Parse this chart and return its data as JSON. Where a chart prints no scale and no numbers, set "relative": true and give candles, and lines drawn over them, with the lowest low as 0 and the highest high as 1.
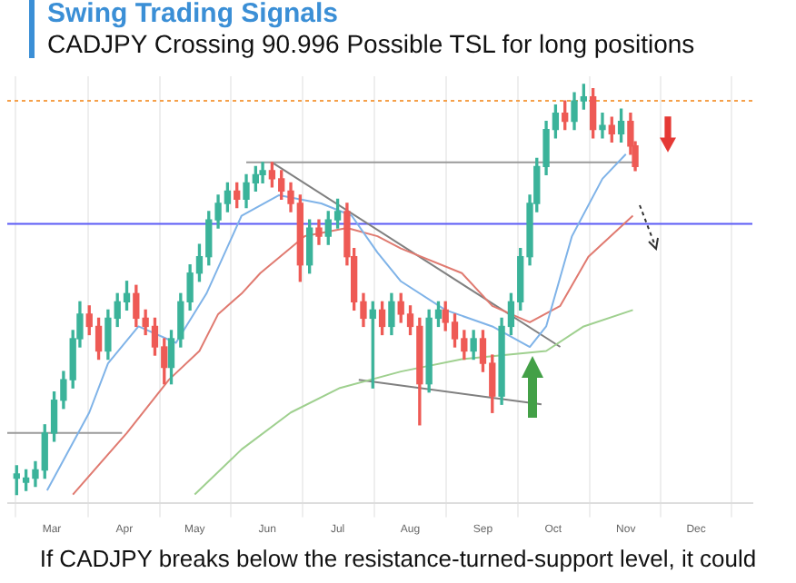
{
  "chart_data": {
    "type": "candlestick",
    "title": "Swing Trading Signals",
    "subtitle": "CADJPY Crossing 90.996 Possible TSL for long positions",
    "relative": true,
    "grid": "x",
    "marker": "none",
    "line_style": "solid",
    "xlim": [
      "--02-10",
      "--12-25"
    ],
    "xticks": [
      {
        "value": "--03-01",
        "label": "Mar"
      },
      {
        "value": "--04-01",
        "label": "Apr"
      },
      {
        "value": "--05-01",
        "label": "May"
      },
      {
        "value": "--06-01",
        "label": "Jun"
      },
      {
        "value": "--07-01",
        "label": "Jul"
      },
      {
        "value": "--08-01",
        "label": "Aug"
      },
      {
        "value": "--09-01",
        "label": "Sep"
      },
      {
        "value": "--10-01",
        "label": "Oct"
      },
      {
        "value": "--11-01",
        "label": "Nov"
      },
      {
        "value": "--12-01",
        "label": "Dec"
      }
    ],
    "x": [
      "--02-14",
      "--02-18",
      "--02-22",
      "--02-26",
      "--03-02",
      "--03-06",
      "--03-10",
      "--03-13",
      "--03-17",
      "--03-21",
      "--03-25",
      "--03-29",
      "--04-02",
      "--04-06",
      "--04-10",
      "--04-14",
      "--04-18",
      "--04-21",
      "--04-25",
      "--04-29",
      "--05-03",
      "--05-07",
      "--05-11",
      "--05-15",
      "--05-19",
      "--05-23",
      "--05-27",
      "--05-30",
      "--06-03",
      "--06-07",
      "--06-11",
      "--06-15",
      "--06-19",
      "--06-23",
      "--06-27",
      "--07-01",
      "--07-05",
      "--07-08",
      "--07-12",
      "--07-16",
      "--07-20",
      "--07-24",
      "--07-28",
      "--08-01",
      "--08-05",
      "--08-09",
      "--08-13",
      "--08-16",
      "--08-20",
      "--08-24",
      "--08-28",
      "--09-01",
      "--09-05",
      "--09-09",
      "--09-13",
      "--09-17",
      "--09-21",
      "--09-24",
      "--09-28",
      "--10-02",
      "--10-06",
      "--10-10",
      "--10-14",
      "--10-18",
      "--10-22",
      "--10-26",
      "--10-30",
      "--11-03",
      "--11-05"
    ],
    "ohlc": [
      [
        0.04,
        0.07,
        0,
        0.05
      ],
      [
        0.03,
        0.06,
        0.01,
        0.04
      ],
      [
        0.04,
        0.08,
        0.02,
        0.06
      ],
      [
        0.06,
        0.17,
        0.04,
        0.15
      ],
      [
        0.15,
        0.25,
        0.13,
        0.23
      ],
      [
        0.23,
        0.3,
        0.21,
        0.28
      ],
      [
        0.28,
        0.4,
        0.26,
        0.38
      ],
      [
        0.38,
        0.47,
        0.36,
        0.44
      ],
      [
        0.44,
        0.46,
        0.39,
        0.41
      ],
      [
        0.41,
        0.43,
        0.33,
        0.35
      ],
      [
        0.35,
        0.45,
        0.33,
        0.43
      ],
      [
        0.43,
        0.49,
        0.41,
        0.47
      ],
      [
        0.47,
        0.52,
        0.45,
        0.49
      ],
      [
        0.49,
        0.51,
        0.41,
        0.43
      ],
      [
        0.43,
        0.45,
        0.39,
        0.41
      ],
      [
        0.41,
        0.43,
        0.34,
        0.36
      ],
      [
        0.36,
        0.38,
        0.27,
        0.31
      ],
      [
        0.31,
        0.4,
        0.27,
        0.38
      ],
      [
        0.38,
        0.49,
        0.36,
        0.47
      ],
      [
        0.47,
        0.56,
        0.45,
        0.54
      ],
      [
        0.54,
        0.61,
        0.52,
        0.58
      ],
      [
        0.58,
        0.69,
        0.56,
        0.67
      ],
      [
        0.67,
        0.73,
        0.65,
        0.71
      ],
      [
        0.71,
        0.76,
        0.69,
        0.74
      ],
      [
        0.74,
        0.76,
        0.7,
        0.72
      ],
      [
        0.72,
        0.78,
        0.7,
        0.76
      ],
      [
        0.76,
        0.8,
        0.74,
        0.78
      ],
      [
        0.78,
        0.81,
        0.76,
        0.79
      ],
      [
        0.79,
        0.81,
        0.75,
        0.77
      ],
      [
        0.77,
        0.79,
        0.72,
        0.74
      ],
      [
        0.74,
        0.76,
        0.69,
        0.71
      ],
      [
        0.71,
        0.73,
        0.52,
        0.56
      ],
      [
        0.56,
        0.67,
        0.54,
        0.65
      ],
      [
        0.65,
        0.67,
        0.61,
        0.63
      ],
      [
        0.63,
        0.69,
        0.61,
        0.67
      ],
      [
        0.67,
        0.72,
        0.65,
        0.69
      ],
      [
        0.69,
        0.71,
        0.56,
        0.58
      ],
      [
        0.58,
        0.6,
        0.45,
        0.47
      ],
      [
        0.47,
        0.49,
        0.41,
        0.43
      ],
      [
        0.43,
        0.47,
        0.26,
        0.45
      ],
      [
        0.45,
        0.47,
        0.39,
        0.41
      ],
      [
        0.41,
        0.49,
        0.39,
        0.47
      ],
      [
        0.47,
        0.49,
        0.42,
        0.44
      ],
      [
        0.44,
        0.46,
        0.39,
        0.41
      ],
      [
        0.41,
        0.43,
        0.17,
        0.27
      ],
      [
        0.27,
        0.45,
        0.25,
        0.43
      ],
      [
        0.43,
        0.47,
        0.41,
        0.45
      ],
      [
        0.45,
        0.47,
        0.4,
        0.42
      ],
      [
        0.42,
        0.44,
        0.36,
        0.38
      ],
      [
        0.38,
        0.4,
        0.33,
        0.35
      ],
      [
        0.35,
        0.4,
        0.33,
        0.38
      ],
      [
        0.38,
        0.4,
        0.3,
        0.32
      ],
      [
        0.32,
        0.34,
        0.2,
        0.24
      ],
      [
        0.24,
        0.43,
        0.22,
        0.41
      ],
      [
        0.41,
        0.49,
        0.39,
        0.47
      ],
      [
        0.47,
        0.6,
        0.45,
        0.58
      ],
      [
        0.58,
        0.73,
        0.56,
        0.71
      ],
      [
        0.71,
        0.82,
        0.69,
        0.8
      ],
      [
        0.8,
        0.91,
        0.78,
        0.89
      ],
      [
        0.89,
        0.95,
        0.87,
        0.93
      ],
      [
        0.93,
        0.96,
        0.89,
        0.91
      ],
      [
        0.91,
        0.98,
        0.89,
        0.96
      ],
      [
        0.96,
        1,
        0.94,
        0.97
      ],
      [
        0.97,
        0.99,
        0.87,
        0.89
      ],
      [
        0.89,
        0.93,
        0.87,
        0.9
      ],
      [
        0.9,
        0.92,
        0.86,
        0.88
      ],
      [
        0.88,
        0.94,
        0.86,
        0.91
      ],
      [
        0.91,
        0.93,
        0.83,
        0.85
      ],
      [
        0.85,
        0.86,
        0.79,
        0.8
      ]
    ],
    "series": [
      {
        "type": "line",
        "color": "#7fb3e8",
        "x": [
          "--02-27",
          "--03-17",
          "--03-25",
          "--04-07",
          "--04-23",
          "--05-06",
          "--05-21",
          "--06-06",
          "--06-24",
          "--07-07",
          "--07-18",
          "--07-28",
          "--08-16",
          "--09-05",
          "--09-21",
          "--09-28",
          "--10-09",
          "--10-22",
          "--11-01"
        ],
        "values": [
          0.01,
          0.2,
          0.32,
          0.41,
          0.37,
          0.49,
          0.68,
          0.73,
          0.71,
          0.68,
          0.59,
          0.52,
          0.45,
          0.41,
          0.36,
          0.41,
          0.63,
          0.77,
          0.83
        ]
      },
      {
        "type": "line",
        "color": "#e07a70",
        "x": [
          "--03-10",
          "--04-02",
          "--04-20",
          "--05-03",
          "--05-11",
          "--05-21",
          "--05-29",
          "--06-17",
          "--07-05",
          "--07-18",
          "--07-28",
          "--08-23",
          "--09-05",
          "--09-21",
          "--10-04",
          "--10-16",
          "--11-04"
        ],
        "values": [
          0,
          0.15,
          0.28,
          0.35,
          0.44,
          0.49,
          0.54,
          0.63,
          0.65,
          0.63,
          0.6,
          0.54,
          0.46,
          0.42,
          0.46,
          0.58,
          0.68
        ]
      },
      {
        "type": "line",
        "color": "#9fd08f",
        "x": [
          "--05-01",
          "--05-21",
          "--06-11",
          "--07-02",
          "--07-28",
          "--08-23",
          "--09-28",
          "--10-14",
          "--11-04"
        ],
        "values": [
          0,
          0.11,
          0.2,
          0.26,
          0.3,
          0.33,
          0.35,
          0.41,
          0.45
        ]
      },
      {
        "type": "line",
        "color": "#9a9a9a",
        "x": [
          "--05-23",
          "--11-05"
        ],
        "values": [
          0.81,
          0.81
        ]
      },
      {
        "type": "line",
        "color": "#808080",
        "x": [
          "--06-03",
          "--10-04"
        ],
        "values": [
          0.81,
          0.36
        ]
      },
      {
        "type": "line",
        "color": "#808080",
        "x": [
          "--07-10",
          "--09-26"
        ],
        "values": [
          0.28,
          0.22
        ]
      },
      {
        "type": "line",
        "color": "#9a9a9a",
        "x": [
          "--02-10",
          "--03-31"
        ],
        "values": [
          0.15,
          0.15
        ]
      }
    ],
    "ref_lines": [
      {
        "axis": "y",
        "value": 0.66,
        "color": "#5b5bf5"
      },
      {
        "axis": "y",
        "value": 0.96,
        "color": "#f5a04a",
        "line_style": "dotted"
      }
    ],
    "annotations": [
      "If CADJPY breaks below the resistance-turned-support level, it could"
    ]
  }
}
